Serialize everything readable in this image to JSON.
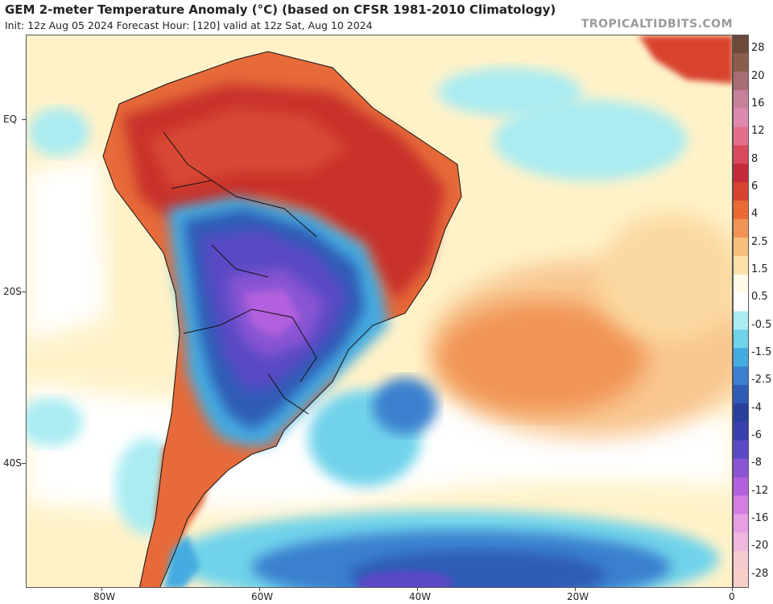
{
  "header": {
    "title": "GEM 2-meter Temperature Anomaly (°C) (based on CFSR 1981-2010 Climatology)",
    "subtitle": "Init: 12z Aug 05 2024   Forecast Hour: [120]   valid at 12z Sat, Aug 10 2024",
    "brand": "TROPICALTIDBITS.COM"
  },
  "axes": {
    "lat_labels": [
      "EQ",
      "20S",
      "40S"
    ],
    "lon_labels": [
      "80W",
      "60W",
      "40W",
      "20W",
      "0"
    ]
  },
  "colorbar": {
    "labels": [
      "28",
      "20",
      "16",
      "12",
      "8",
      "6",
      "4",
      "2.5",
      "1.5",
      "0.5",
      "-0.5",
      "-1.5",
      "-2.5",
      "-4",
      "-6",
      "-8",
      "-12",
      "-16",
      "-20",
      "-28"
    ],
    "colors": [
      "#6b4a3a",
      "#8a5c4c",
      "#a86d72",
      "#c7819a",
      "#de8ab0",
      "#e56d8c",
      "#d94a5c",
      "#c52a3a",
      "#d8432f",
      "#ea6a34",
      "#f19455",
      "#f7be7c",
      "#fbe0a8",
      "#fffbe8",
      "#ffffff",
      "#a9ecf2",
      "#6fd3ea",
      "#44abe0",
      "#3a80cf",
      "#2d5bb5",
      "#27409c",
      "#3b3fae",
      "#5a49c4",
      "#8a55d4",
      "#b260dd",
      "#d47ee2",
      "#e89fe4",
      "#f0b8de",
      "#f6c9d0",
      "#f8cfc8"
    ],
    "brand_colors": {
      "land_warm": "#e0703a",
      "cold_core": "#5a49c4",
      "ocean_warm": "#f6b27a"
    }
  }
}
